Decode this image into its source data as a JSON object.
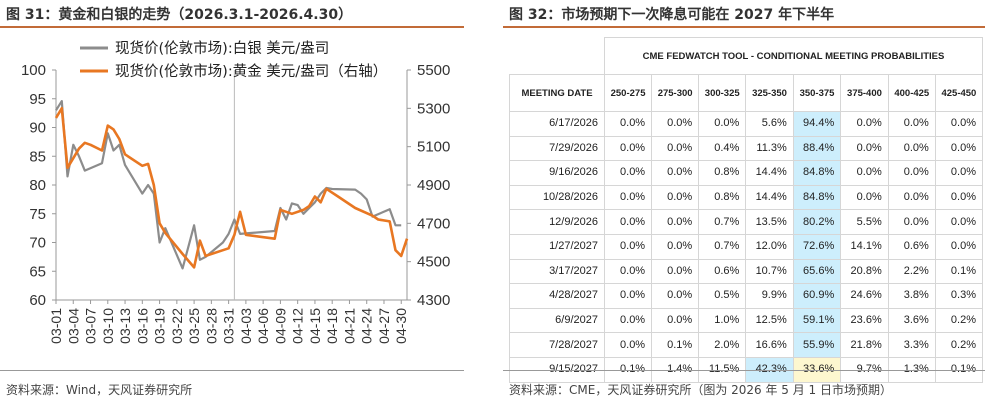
{
  "left": {
    "title": "图 31：黄金和白银的走势（2026.3.1-2026.4.30）",
    "source": "资料来源：Wind，天风证券研究所",
    "chart_data": {
      "type": "line",
      "legend_position": "top-right",
      "x_ticks": [
        "03-01",
        "03-04",
        "03-07",
        "03-10",
        "03-13",
        "03-16",
        "03-19",
        "03-22",
        "03-25",
        "03-28",
        "03-31",
        "04-03",
        "04-06",
        "04-09",
        "04-12",
        "04-15",
        "04-18",
        "04-21",
        "04-24",
        "04-27",
        "04-30"
      ],
      "y_left": {
        "ticks": [
          100,
          95,
          90,
          85,
          80,
          75,
          70,
          65,
          60
        ],
        "lim": [
          60,
          100
        ]
      },
      "y_right": {
        "ticks": [
          5500,
          5300,
          5100,
          4900,
          4700,
          4500,
          4300
        ],
        "lim": [
          4300,
          5500
        ]
      },
      "series": [
        {
          "name": "现货价(伦敦市场):白银 美元/盎司",
          "color": "#8c8c8c",
          "axis": "left",
          "points": [
            [
              0,
              93.0
            ],
            [
              1,
              94.6
            ],
            [
              2,
              81.5
            ],
            [
              3,
              87.0
            ],
            [
              4,
              85.0
            ],
            [
              5,
              82.5
            ],
            [
              8,
              83.8
            ],
            [
              9,
              89.0
            ],
            [
              10,
              86.0
            ],
            [
              11,
              87.0
            ],
            [
              12,
              83.5
            ],
            [
              15,
              78.5
            ],
            [
              16,
              80.0
            ],
            [
              17,
              78.5
            ],
            [
              18,
              70.0
            ],
            [
              19,
              72.5
            ],
            [
              22,
              65.5
            ],
            [
              24,
              73.0
            ],
            [
              25,
              67.0
            ],
            [
              26,
              67.5
            ],
            [
              29,
              70.0
            ],
            [
              30,
              71.5
            ],
            [
              31,
              74.0
            ],
            [
              32,
              71.5
            ],
            [
              38,
              72.0
            ],
            [
              39,
              76.0
            ],
            [
              40,
              74.0
            ],
            [
              41,
              76.8
            ],
            [
              42,
              76.5
            ],
            [
              43,
              75.0
            ],
            [
              44,
              76.0
            ],
            [
              45,
              77.0
            ],
            [
              46,
              78.5
            ],
            [
              47,
              79.5
            ],
            [
              48,
              79.3
            ],
            [
              52,
              79.2
            ],
            [
              53,
              78.5
            ],
            [
              54,
              77.5
            ],
            [
              55,
              74.5
            ],
            [
              58,
              75.8
            ],
            [
              59,
              73.0
            ],
            [
              60,
              73.0
            ]
          ]
        },
        {
          "name": "现货价(伦敦市场):黄金 美元/盎司（右轴）",
          "color": "#e87722",
          "axis": "right",
          "points": [
            [
              0,
              5250
            ],
            [
              1,
              5300
            ],
            [
              2,
              4990
            ],
            [
              3,
              5040
            ],
            [
              4,
              5090
            ],
            [
              5,
              5120
            ],
            [
              6,
              5110
            ],
            [
              8,
              5080
            ],
            [
              9,
              5210
            ],
            [
              10,
              5190
            ],
            [
              11,
              5140
            ],
            [
              12,
              5060
            ],
            [
              15,
              5000
            ],
            [
              16,
              5010
            ],
            [
              17,
              4900
            ],
            [
              18,
              4700
            ],
            [
              19,
              4650
            ],
            [
              22,
              4540
            ],
            [
              24,
              4470
            ],
            [
              25,
              4610
            ],
            [
              26,
              4530
            ],
            [
              29,
              4560
            ],
            [
              30,
              4570
            ],
            [
              31,
              4640
            ],
            [
              32,
              4760
            ],
            [
              33,
              4640
            ],
            [
              38,
              4620
            ],
            [
              39,
              4770
            ],
            [
              40,
              4760
            ],
            [
              41,
              4750
            ],
            [
              43,
              4770
            ],
            [
              44,
              4790
            ],
            [
              45,
              4840
            ],
            [
              46,
              4810
            ],
            [
              47,
              4880
            ],
            [
              48,
              4860
            ],
            [
              49,
              4840
            ],
            [
              52,
              4780
            ],
            [
              55,
              4740
            ],
            [
              56,
              4720
            ],
            [
              58,
              4710
            ],
            [
              59,
              4560
            ],
            [
              60,
              4530
            ],
            [
              61,
              4620
            ]
          ]
        }
      ]
    }
  },
  "right": {
    "title": "图 32：市场预期下一次降息可能在 2027 年下半年",
    "source": "资料来源：CME，天风证券研究所（图为 2026 年 5 月 1 日市场预期）",
    "chart_data": {
      "type": "table",
      "title": "CME FEDWATCH TOOL - CONDITIONAL MEETING PROBABILITIES",
      "columns": [
        "MEETING DATE",
        "250-275",
        "275-300",
        "300-325",
        "325-350",
        "350-375",
        "375-400",
        "400-425",
        "425-450"
      ],
      "rows": [
        [
          "6/17/2026",
          "0.0%",
          "0.0%",
          "0.0%",
          "5.6%",
          "94.4%",
          "0.0%",
          "0.0%",
          "0.0%"
        ],
        [
          "7/29/2026",
          "0.0%",
          "0.0%",
          "0.4%",
          "11.3%",
          "88.4%",
          "0.0%",
          "0.0%",
          "0.0%"
        ],
        [
          "9/16/2026",
          "0.0%",
          "0.0%",
          "0.8%",
          "14.4%",
          "84.8%",
          "0.0%",
          "0.0%",
          "0.0%"
        ],
        [
          "10/28/2026",
          "0.0%",
          "0.0%",
          "0.8%",
          "14.4%",
          "84.8%",
          "0.0%",
          "0.0%",
          "0.0%"
        ],
        [
          "12/9/2026",
          "0.0%",
          "0.0%",
          "0.7%",
          "13.5%",
          "80.2%",
          "5.5%",
          "0.0%",
          "0.0%"
        ],
        [
          "1/27/2027",
          "0.0%",
          "0.0%",
          "0.7%",
          "12.0%",
          "72.6%",
          "14.1%",
          "0.6%",
          "0.0%"
        ],
        [
          "3/17/2027",
          "0.0%",
          "0.0%",
          "0.6%",
          "10.7%",
          "65.6%",
          "20.8%",
          "2.2%",
          "0.1%"
        ],
        [
          "4/28/2027",
          "0.0%",
          "0.0%",
          "0.5%",
          "9.9%",
          "60.9%",
          "24.6%",
          "3.8%",
          "0.3%"
        ],
        [
          "6/9/2027",
          "0.0%",
          "0.0%",
          "1.0%",
          "12.5%",
          "59.1%",
          "23.6%",
          "3.6%",
          "0.2%"
        ],
        [
          "7/28/2027",
          "0.0%",
          "0.1%",
          "2.0%",
          "16.6%",
          "55.9%",
          "21.8%",
          "3.3%",
          "0.2%"
        ],
        [
          "9/15/2027",
          "0.1%",
          "1.4%",
          "11.5%",
          "42.3%",
          "33.6%",
          "9.7%",
          "1.3%",
          "0.1%"
        ]
      ],
      "highlight": {
        "blue_color": "#cdeefc",
        "yellow_color": "#fdf7cf",
        "blue_cells": [
          [
            0,
            5
          ],
          [
            1,
            5
          ],
          [
            2,
            5
          ],
          [
            3,
            5
          ],
          [
            4,
            5
          ],
          [
            5,
            5
          ],
          [
            6,
            5
          ],
          [
            7,
            5
          ],
          [
            8,
            5
          ],
          [
            9,
            5
          ],
          [
            10,
            4
          ]
        ],
        "yellow_cells": [
          [
            10,
            5
          ]
        ]
      }
    }
  }
}
